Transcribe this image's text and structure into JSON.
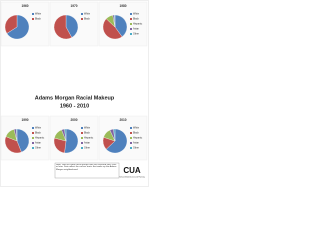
{
  "title": "Adams Morgan Racial Makeup",
  "subtitle": "1960 - 2010",
  "note": "Note: Data for some racial groups was not collected until 1980 or later. Data reflect the census tracts that make up the Adams Morgan neighborhood.",
  "logo": "CUA",
  "logo_sub": "School of Architecture and Planning",
  "chart_data": [
    {
      "type": "pie",
      "title": "1960",
      "categories": [
        "White",
        "Black"
      ],
      "values": [
        66,
        34
      ],
      "colors": [
        "#4f81bd",
        "#c0504d"
      ]
    },
    {
      "type": "pie",
      "title": "1970",
      "categories": [
        "White",
        "Black"
      ],
      "values": [
        42,
        58
      ],
      "colors": [
        "#4f81bd",
        "#c0504d"
      ]
    },
    {
      "type": "pie",
      "title": "1980",
      "categories": [
        "White",
        "Black",
        "Hispanic",
        "Asian",
        "Other"
      ],
      "values": [
        40,
        47,
        10,
        2,
        1
      ],
      "colors": [
        "#4f81bd",
        "#c0504d",
        "#9bbb59",
        "#8064a2",
        "#4bacc6"
      ]
    },
    {
      "type": "pie",
      "title": "1990",
      "categories": [
        "White",
        "Black",
        "Hispanic",
        "Asian",
        "Other"
      ],
      "values": [
        44,
        37,
        15,
        3,
        1
      ],
      "colors": [
        "#4f81bd",
        "#c0504d",
        "#9bbb59",
        "#8064a2",
        "#4bacc6"
      ]
    },
    {
      "type": "pie",
      "title": "2000",
      "categories": [
        "White",
        "Black",
        "Hispanic",
        "Asian",
        "Other"
      ],
      "values": [
        52,
        27,
        15,
        4,
        2
      ],
      "colors": [
        "#4f81bd",
        "#c0504d",
        "#9bbb59",
        "#8064a2",
        "#4bacc6"
      ]
    },
    {
      "type": "pie",
      "title": "2010",
      "categories": [
        "White",
        "Black",
        "Hispanic",
        "Asian",
        "Other"
      ],
      "values": [
        63,
        17,
        13,
        5,
        2
      ],
      "colors": [
        "#4f81bd",
        "#c0504d",
        "#9bbb59",
        "#8064a2",
        "#4bacc6"
      ]
    }
  ]
}
